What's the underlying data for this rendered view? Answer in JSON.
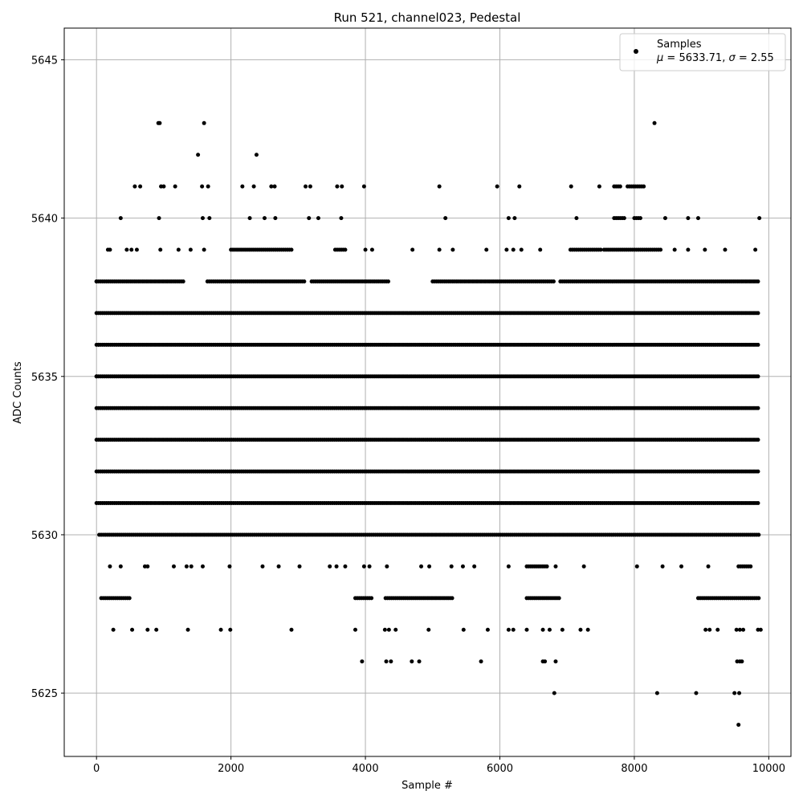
{
  "chart_data": {
    "type": "scatter",
    "title": "Run 521, channel023, Pedestal",
    "xlabel": "Sample #",
    "ylabel": "ADC Counts",
    "xlim": [
      -480,
      10330
    ],
    "ylim": [
      5623,
      5646
    ],
    "xticks": [
      0,
      2000,
      4000,
      6000,
      8000,
      10000
    ],
    "yticks": [
      5625,
      5630,
      5635,
      5640,
      5645
    ],
    "grid": true,
    "marker_color": "#000000",
    "legend": {
      "placement": "top-right",
      "label": "Samples",
      "stats_text": "μ = 5633.71, σ = 2.55",
      "mu_symbol": "μ",
      "mu_value_text": " = 5633.71, ",
      "sigma_symbol": "σ",
      "sigma_value_text": " = 2.55"
    },
    "series": [
      {
        "name": "Samples",
        "band_coverage": [
          {
            "y": 5637,
            "ranges": [
              [
                0,
                9850
              ]
            ]
          },
          {
            "y": 5636,
            "ranges": [
              [
                0,
                9850
              ]
            ]
          },
          {
            "y": 5635,
            "ranges": [
              [
                0,
                9850
              ]
            ]
          },
          {
            "y": 5634,
            "ranges": [
              [
                0,
                9850
              ]
            ]
          },
          {
            "y": 5633,
            "ranges": [
              [
                0,
                9850
              ]
            ]
          },
          {
            "y": 5632,
            "ranges": [
              [
                0,
                9850
              ]
            ]
          },
          {
            "y": 5631,
            "ranges": [
              [
                0,
                9850
              ]
            ]
          },
          {
            "y": 5630,
            "ranges": [
              [
                40,
                9850
              ]
            ]
          },
          {
            "y": 5638,
            "ranges": [
              [
                0,
                1300
              ],
              [
                1650,
                3100
              ],
              [
                3200,
                4350
              ],
              [
                5000,
                6800
              ],
              [
                6900,
                9850
              ]
            ]
          },
          {
            "y": 5639,
            "ranges": [
              [
                2000,
                2900
              ],
              [
                3550,
                3700
              ],
              [
                7050,
                7500
              ],
              [
                7550,
                8400
              ]
            ]
          },
          {
            "y": 5628,
            "ranges": [
              [
                70,
                500
              ],
              [
                3850,
                4100
              ],
              [
                4300,
                5300
              ],
              [
                6400,
                6900
              ],
              [
                8950,
                9850
              ]
            ]
          },
          {
            "y": 5629,
            "ranges": [
              [
                6400,
                6700
              ],
              [
                9550,
                9750
              ]
            ]
          },
          {
            "y": 5640,
            "ranges": [
              [
                7700,
                7850
              ],
              [
                8000,
                8100
              ]
            ]
          },
          {
            "y": 5641,
            "ranges": [
              [
                7700,
                7800
              ],
              [
                7900,
                8150
              ]
            ]
          }
        ],
        "points": [
          [
            0,
            5638
          ],
          [
            0,
            5635
          ],
          [
            30,
            5636
          ],
          [
            360,
            5640
          ],
          [
            570,
            5641
          ],
          [
            650,
            5641
          ],
          [
            920,
            5643
          ],
          [
            940,
            5643
          ],
          [
            930,
            5640
          ],
          [
            960,
            5641
          ],
          [
            1000,
            5641
          ],
          [
            1170,
            5641
          ],
          [
            1510,
            5642
          ],
          [
            1570,
            5641
          ],
          [
            1600,
            5643
          ],
          [
            1660,
            5641
          ],
          [
            1580,
            5640
          ],
          [
            1680,
            5640
          ],
          [
            2170,
            5641
          ],
          [
            2280,
            5640
          ],
          [
            2340,
            5641
          ],
          [
            2380,
            5642
          ],
          [
            2500,
            5640
          ],
          [
            2600,
            5641
          ],
          [
            2650,
            5641
          ],
          [
            2660,
            5640
          ],
          [
            3110,
            5641
          ],
          [
            3180,
            5641
          ],
          [
            3160,
            5640
          ],
          [
            3300,
            5640
          ],
          [
            3580,
            5641
          ],
          [
            3650,
            5641
          ],
          [
            3640,
            5640
          ],
          [
            3980,
            5641
          ],
          [
            5100,
            5641
          ],
          [
            5190,
            5640
          ],
          [
            5960,
            5641
          ],
          [
            6130,
            5640
          ],
          [
            6220,
            5640
          ],
          [
            6290,
            5641
          ],
          [
            6320,
            5639
          ],
          [
            7060,
            5641
          ],
          [
            7140,
            5640
          ],
          [
            7480,
            5641
          ],
          [
            8300,
            5643
          ],
          [
            8460,
            5640
          ],
          [
            8800,
            5640
          ],
          [
            8950,
            5640
          ],
          [
            9860,
            5640
          ],
          [
            170,
            5639
          ],
          [
            200,
            5639
          ],
          [
            450,
            5639
          ],
          [
            520,
            5639
          ],
          [
            600,
            5639
          ],
          [
            950,
            5639
          ],
          [
            1220,
            5639
          ],
          [
            1400,
            5639
          ],
          [
            1600,
            5639
          ],
          [
            4000,
            5639
          ],
          [
            4100,
            5639
          ],
          [
            4700,
            5639
          ],
          [
            5100,
            5639
          ],
          [
            5300,
            5639
          ],
          [
            5800,
            5639
          ],
          [
            6100,
            5639
          ],
          [
            6200,
            5639
          ],
          [
            6600,
            5639
          ],
          [
            8600,
            5639
          ],
          [
            8800,
            5639
          ],
          [
            9050,
            5639
          ],
          [
            9350,
            5639
          ],
          [
            9800,
            5639
          ],
          [
            200,
            5629
          ],
          [
            360,
            5629
          ],
          [
            720,
            5629
          ],
          [
            760,
            5629
          ],
          [
            1150,
            5629
          ],
          [
            1340,
            5629
          ],
          [
            1410,
            5629
          ],
          [
            1580,
            5629
          ],
          [
            1980,
            5629
          ],
          [
            2470,
            5629
          ],
          [
            2710,
            5629
          ],
          [
            3020,
            5629
          ],
          [
            3470,
            5629
          ],
          [
            3570,
            5629
          ],
          [
            3700,
            5629
          ],
          [
            3980,
            5629
          ],
          [
            4060,
            5629
          ],
          [
            4320,
            5629
          ],
          [
            4830,
            5629
          ],
          [
            4950,
            5629
          ],
          [
            5280,
            5629
          ],
          [
            5450,
            5629
          ],
          [
            5620,
            5629
          ],
          [
            6130,
            5629
          ],
          [
            6830,
            5629
          ],
          [
            7250,
            5629
          ],
          [
            8040,
            5629
          ],
          [
            8420,
            5629
          ],
          [
            8700,
            5629
          ],
          [
            9100,
            5629
          ],
          [
            250,
            5627
          ],
          [
            530,
            5627
          ],
          [
            760,
            5627
          ],
          [
            890,
            5627
          ],
          [
            1360,
            5627
          ],
          [
            1850,
            5627
          ],
          [
            1990,
            5627
          ],
          [
            2900,
            5627
          ],
          [
            3850,
            5627
          ],
          [
            4290,
            5627
          ],
          [
            4350,
            5627
          ],
          [
            4450,
            5627
          ],
          [
            4940,
            5627
          ],
          [
            5460,
            5627
          ],
          [
            5820,
            5627
          ],
          [
            6130,
            5627
          ],
          [
            6200,
            5627
          ],
          [
            6400,
            5627
          ],
          [
            6640,
            5627
          ],
          [
            6740,
            5627
          ],
          [
            6930,
            5627
          ],
          [
            7200,
            5627
          ],
          [
            7310,
            5627
          ],
          [
            9060,
            5627
          ],
          [
            9120,
            5627
          ],
          [
            9240,
            5627
          ],
          [
            9520,
            5627
          ],
          [
            9570,
            5627
          ],
          [
            9620,
            5627
          ],
          [
            9840,
            5627
          ],
          [
            9880,
            5627
          ],
          [
            3950,
            5626
          ],
          [
            4310,
            5626
          ],
          [
            4380,
            5626
          ],
          [
            4690,
            5626
          ],
          [
            4800,
            5626
          ],
          [
            5720,
            5626
          ],
          [
            6640,
            5626
          ],
          [
            6670,
            5626
          ],
          [
            6830,
            5626
          ],
          [
            9530,
            5626
          ],
          [
            9570,
            5626
          ],
          [
            9600,
            5626
          ],
          [
            6810,
            5625
          ],
          [
            8340,
            5625
          ],
          [
            8920,
            5625
          ],
          [
            9490,
            5625
          ],
          [
            9560,
            5625
          ],
          [
            9550,
            5624
          ]
        ]
      }
    ]
  }
}
